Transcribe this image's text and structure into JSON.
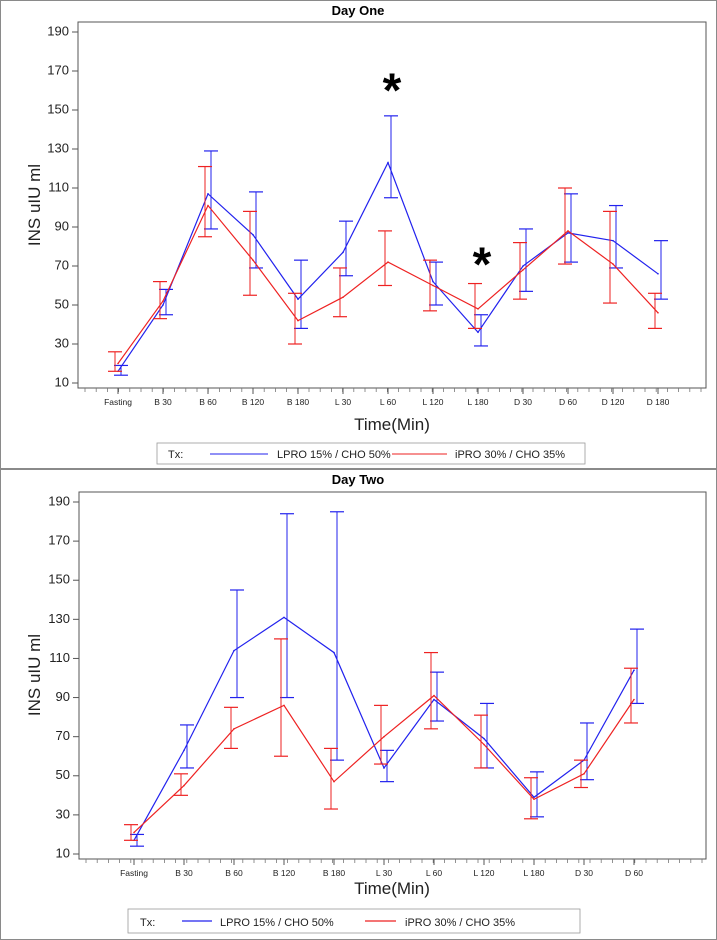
{
  "colors": {
    "blue": "#2222ee",
    "red": "#ee2222",
    "frame": "#8a8a8a"
  },
  "chart_data": [
    {
      "type": "line",
      "title": "Day One",
      "xlabel": "Time(Min)",
      "ylabel": "INS uIU ml",
      "ylim": [
        10,
        190
      ],
      "yticks": [
        10,
        30,
        50,
        70,
        90,
        110,
        130,
        150,
        170,
        190
      ],
      "categories": [
        "Fasting",
        "B 30",
        "B 60",
        "B 120",
        "B 180",
        "L 30",
        "L 60",
        "L 120",
        "L 180",
        "D 30",
        "D 60",
        "D 120",
        "D 180"
      ],
      "series": [
        {
          "name": "LPRO 15% / CHO 50%",
          "color": "#2222ee",
          "values": [
            16,
            50,
            107,
            86,
            53,
            77,
            123,
            62,
            36,
            70,
            87,
            83,
            66
          ],
          "lower": [
            14,
            45,
            89,
            69,
            38,
            65,
            105,
            50,
            29,
            57,
            72,
            69,
            53
          ],
          "upper": [
            19,
            58,
            129,
            108,
            73,
            93,
            147,
            72,
            45,
            89,
            107,
            101,
            83
          ]
        },
        {
          "name": "iPRO 30% / CHO 35%",
          "color": "#ee2222",
          "values": [
            20,
            52,
            101,
            73,
            42,
            54,
            72,
            60,
            48,
            68,
            88,
            71,
            46
          ],
          "lower": [
            16,
            43,
            85,
            55,
            30,
            44,
            60,
            47,
            38,
            53,
            71,
            51,
            38
          ],
          "upper": [
            26,
            62,
            121,
            98,
            56,
            69,
            88,
            73,
            61,
            82,
            110,
            98,
            56
          ]
        }
      ],
      "annotations": [
        {
          "text": "*",
          "category": "L 60",
          "y": 164
        },
        {
          "text": "*",
          "category": "L 180",
          "y": 75
        }
      ],
      "legend": {
        "title": "Tx:",
        "position": "bottom"
      }
    },
    {
      "type": "line",
      "title": "Day Two",
      "xlabel": "Time(Min)",
      "ylabel": "INS uIU ml",
      "ylim": [
        10,
        190
      ],
      "yticks": [
        10,
        30,
        50,
        70,
        90,
        110,
        130,
        150,
        170,
        190
      ],
      "categories": [
        "Fasting",
        "B 30",
        "B 60",
        "B 120",
        "B 180",
        "L 30",
        "L 60",
        "L 120",
        "L 180",
        "D 30",
        "D 60"
      ],
      "series": [
        {
          "name": "LPRO 15% / CHO 50%",
          "color": "#2222ee",
          "values": [
            17,
            63,
            114,
            131,
            113,
            54,
            89,
            69,
            39,
            58,
            104
          ],
          "lower": [
            14,
            54,
            90,
            90,
            58,
            47,
            78,
            54,
            29,
            48,
            87
          ],
          "upper": [
            20,
            76,
            145,
            184,
            185,
            63,
            103,
            87,
            52,
            77,
            125
          ]
        },
        {
          "name": "iPRO 30% / CHO 35%",
          "color": "#ee2222",
          "values": [
            21,
            45,
            74,
            86,
            47,
            70,
            91,
            66,
            38,
            51,
            89
          ],
          "lower": [
            17,
            40,
            64,
            60,
            33,
            56,
            74,
            54,
            28,
            44,
            77
          ],
          "upper": [
            25,
            51,
            85,
            120,
            64,
            86,
            113,
            81,
            49,
            58,
            105
          ]
        }
      ],
      "annotations": [],
      "legend": {
        "title": "Tx:",
        "position": "bottom"
      }
    }
  ]
}
